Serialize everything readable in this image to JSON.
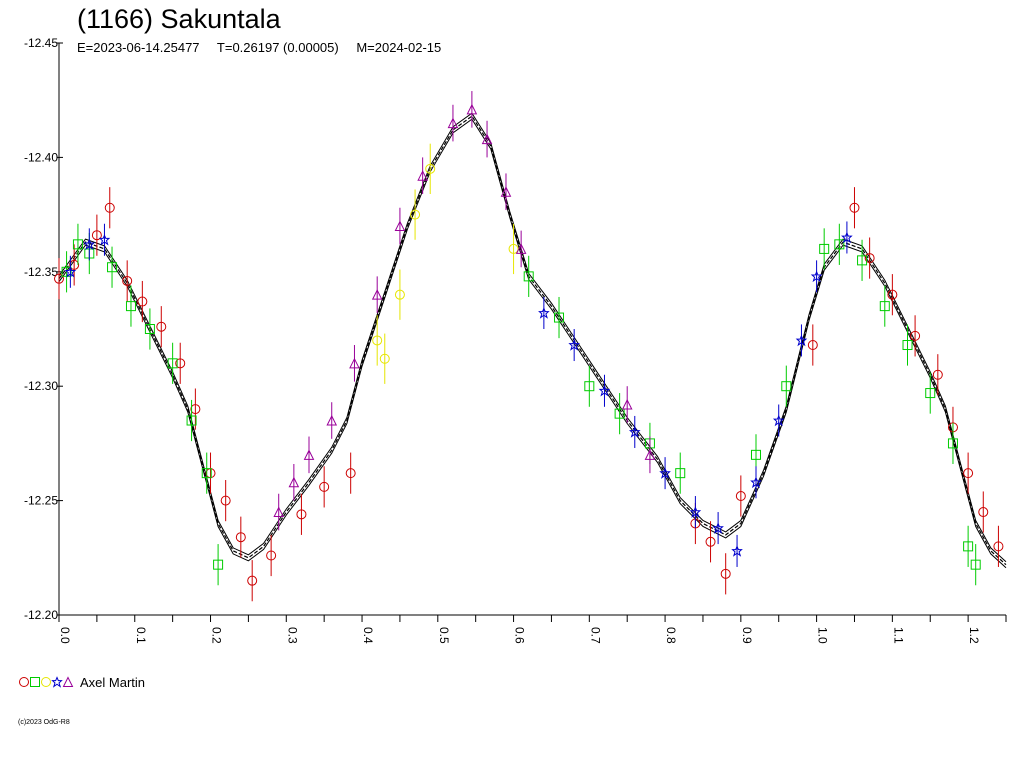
{
  "header": {
    "title": "(1166) Sakuntala",
    "epoch": "E=2023-06-14.25477",
    "period": "T=0.26197 (0.00005)",
    "mid_date": "M=2024-02-15"
  },
  "legend": {
    "observer": "Axel Martin",
    "symbols": [
      {
        "shape": "circle",
        "color": "#cc0000"
      },
      {
        "shape": "square",
        "color": "#00cc00"
      },
      {
        "shape": "circle",
        "color": "#e6e600"
      },
      {
        "shape": "star",
        "color": "#0000cc"
      },
      {
        "shape": "triangle",
        "color": "#990099"
      }
    ]
  },
  "footer": {
    "copyright": "(c)2023 OdG-R8"
  },
  "chart_data": {
    "type": "scatter",
    "x_axis": {
      "range": [
        0.0,
        1.25
      ],
      "ticks": [
        "0.0",
        "0.1",
        "0.2",
        "0.3",
        "0.4",
        "0.5",
        "0.6",
        "0.7",
        "0.8",
        "0.9",
        "1.0",
        "1.1",
        "1.2"
      ],
      "tick_values": [
        0.0,
        0.1,
        0.2,
        0.3,
        0.4,
        0.5,
        0.6,
        0.7,
        0.8,
        0.9,
        1.0,
        1.1,
        1.2
      ]
    },
    "y_axis": {
      "range": [
        -12.45,
        -12.2
      ],
      "inverted": true,
      "ticks": [
        "-12.45",
        "-12.40",
        "-12.35",
        "-12.30",
        "-12.25",
        "-12.20"
      ],
      "tick_values": [
        -12.45,
        -12.4,
        -12.35,
        -12.3,
        -12.25,
        -12.2
      ]
    },
    "fit_curve": {
      "color": "#000000",
      "points": [
        [
          0.0,
          -12.347
        ],
        [
          0.035,
          -12.363
        ],
        [
          0.06,
          -12.36
        ],
        [
          0.09,
          -12.345
        ],
        [
          0.12,
          -12.325
        ],
        [
          0.15,
          -12.305
        ],
        [
          0.17,
          -12.29
        ],
        [
          0.19,
          -12.265
        ],
        [
          0.21,
          -12.24
        ],
        [
          0.23,
          -12.228
        ],
        [
          0.25,
          -12.225
        ],
        [
          0.27,
          -12.23
        ],
        [
          0.3,
          -12.245
        ],
        [
          0.33,
          -12.258
        ],
        [
          0.36,
          -12.272
        ],
        [
          0.38,
          -12.285
        ],
        [
          0.4,
          -12.31
        ],
        [
          0.43,
          -12.34
        ],
        [
          0.46,
          -12.37
        ],
        [
          0.49,
          -12.395
        ],
        [
          0.52,
          -12.412
        ],
        [
          0.545,
          -12.418
        ],
        [
          0.57,
          -12.405
        ],
        [
          0.595,
          -12.375
        ],
        [
          0.62,
          -12.348
        ],
        [
          0.65,
          -12.335
        ],
        [
          0.68,
          -12.32
        ],
        [
          0.71,
          -12.305
        ],
        [
          0.75,
          -12.285
        ],
        [
          0.79,
          -12.268
        ],
        [
          0.82,
          -12.25
        ],
        [
          0.85,
          -12.24
        ],
        [
          0.88,
          -12.235
        ],
        [
          0.9,
          -12.24
        ],
        [
          0.93,
          -12.262
        ],
        [
          0.96,
          -12.29
        ],
        [
          0.99,
          -12.33
        ],
        [
          1.01,
          -12.352
        ],
        [
          1.035,
          -12.363
        ],
        [
          1.06,
          -12.36
        ],
        [
          1.09,
          -12.345
        ],
        [
          1.12,
          -12.325
        ],
        [
          1.15,
          -12.305
        ],
        [
          1.17,
          -12.29
        ],
        [
          1.19,
          -12.265
        ],
        [
          1.21,
          -12.24
        ],
        [
          1.23,
          -12.228
        ],
        [
          1.25,
          -12.222
        ]
      ]
    },
    "series": [
      {
        "marker": "circle",
        "color": "#cc0000",
        "points": [
          [
            0.0,
            -12.347
          ],
          [
            0.02,
            -12.353
          ],
          [
            0.05,
            -12.366
          ],
          [
            0.067,
            -12.378
          ],
          [
            0.09,
            -12.346
          ],
          [
            0.11,
            -12.337
          ],
          [
            0.135,
            -12.326
          ],
          [
            0.16,
            -12.31
          ],
          [
            0.18,
            -12.29
          ],
          [
            0.2,
            -12.262
          ],
          [
            0.22,
            -12.25
          ],
          [
            0.24,
            -12.234
          ],
          [
            0.255,
            -12.215
          ],
          [
            0.28,
            -12.226
          ],
          [
            0.32,
            -12.244
          ],
          [
            0.35,
            -12.256
          ],
          [
            0.385,
            -12.262
          ],
          [
            0.9,
            -12.252
          ],
          [
            0.88,
            -12.218
          ],
          [
            0.86,
            -12.232
          ],
          [
            1.05,
            -12.378
          ],
          [
            1.07,
            -12.356
          ],
          [
            1.1,
            -12.34
          ],
          [
            1.13,
            -12.322
          ],
          [
            1.16,
            -12.305
          ],
          [
            1.18,
            -12.282
          ],
          [
            1.2,
            -12.262
          ],
          [
            1.22,
            -12.245
          ],
          [
            1.24,
            -12.23
          ],
          [
            0.995,
            -12.318
          ],
          [
            0.84,
            -12.24
          ]
        ],
        "err": 0.009
      },
      {
        "marker": "square",
        "color": "#00cc00",
        "points": [
          [
            0.01,
            -12.35
          ],
          [
            0.025,
            -12.362
          ],
          [
            0.04,
            -12.358
          ],
          [
            0.07,
            -12.352
          ],
          [
            0.095,
            -12.335
          ],
          [
            0.12,
            -12.325
          ],
          [
            0.15,
            -12.31
          ],
          [
            0.175,
            -12.285
          ],
          [
            0.195,
            -12.262
          ],
          [
            0.21,
            -12.222
          ],
          [
            0.62,
            -12.348
          ],
          [
            0.66,
            -12.33
          ],
          [
            0.7,
            -12.3
          ],
          [
            0.74,
            -12.288
          ],
          [
            0.78,
            -12.275
          ],
          [
            0.82,
            -12.262
          ],
          [
            0.92,
            -12.27
          ],
          [
            0.96,
            -12.3
          ],
          [
            1.01,
            -12.36
          ],
          [
            1.03,
            -12.362
          ],
          [
            1.06,
            -12.355
          ],
          [
            1.09,
            -12.335
          ],
          [
            1.12,
            -12.318
          ],
          [
            1.15,
            -12.297
          ],
          [
            1.18,
            -12.275
          ],
          [
            1.2,
            -12.23
          ],
          [
            1.21,
            -12.222
          ]
        ],
        "err": 0.009
      },
      {
        "marker": "circle",
        "color": "#e6e600",
        "points": [
          [
            0.42,
            -12.32
          ],
          [
            0.43,
            -12.312
          ],
          [
            0.45,
            -12.34
          ],
          [
            0.47,
            -12.375
          ],
          [
            0.49,
            -12.395
          ],
          [
            0.6,
            -12.36
          ]
        ],
        "err": 0.011
      },
      {
        "marker": "star",
        "color": "#0000cc",
        "points": [
          [
            0.015,
            -12.35
          ],
          [
            0.04,
            -12.362
          ],
          [
            0.06,
            -12.364
          ],
          [
            0.64,
            -12.332
          ],
          [
            0.68,
            -12.318
          ],
          [
            0.72,
            -12.298
          ],
          [
            0.76,
            -12.28
          ],
          [
            0.8,
            -12.262
          ],
          [
            0.84,
            -12.245
          ],
          [
            0.87,
            -12.238
          ],
          [
            0.895,
            -12.228
          ],
          [
            0.92,
            -12.258
          ],
          [
            0.95,
            -12.285
          ],
          [
            0.98,
            -12.32
          ],
          [
            1.0,
            -12.348
          ],
          [
            1.04,
            -12.365
          ]
        ],
        "err": 0.007
      },
      {
        "marker": "triangle",
        "color": "#990099",
        "points": [
          [
            0.29,
            -12.245
          ],
          [
            0.31,
            -12.258
          ],
          [
            0.33,
            -12.27
          ],
          [
            0.36,
            -12.285
          ],
          [
            0.39,
            -12.31
          ],
          [
            0.42,
            -12.34
          ],
          [
            0.45,
            -12.37
          ],
          [
            0.48,
            -12.392
          ],
          [
            0.52,
            -12.415
          ],
          [
            0.545,
            -12.421
          ],
          [
            0.565,
            -12.408
          ],
          [
            0.59,
            -12.385
          ],
          [
            0.61,
            -12.36
          ],
          [
            0.75,
            -12.292
          ],
          [
            0.78,
            -12.27
          ]
        ],
        "err": 0.008
      }
    ]
  }
}
